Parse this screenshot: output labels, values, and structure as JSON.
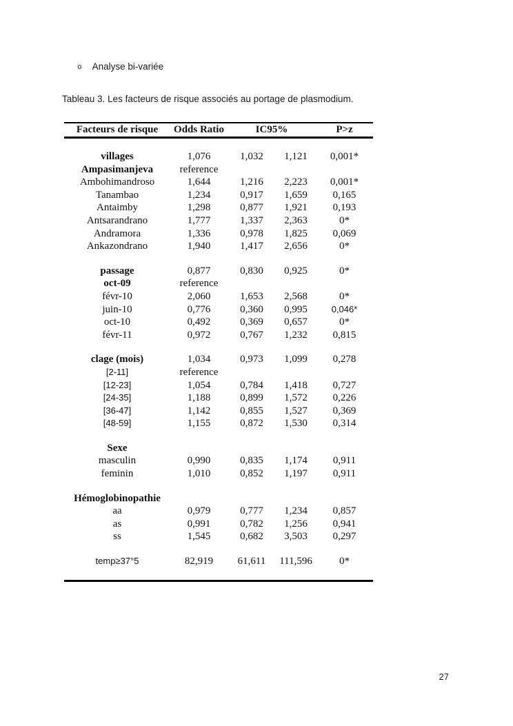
{
  "page": {
    "bullet_item": "Analyse bi-variée",
    "table_caption": "Tableau 3. Les facteurs de risque associés au portage de plasmodium.",
    "page_number": "27"
  },
  "colors": {
    "background": "#ffffff",
    "text": "#1a1a1a",
    "table_rule": "#000000"
  },
  "table": {
    "headers": [
      "Facteurs de risque",
      "Odds Ratio",
      "IC95%",
      "P>z"
    ],
    "rows": [
      {
        "spacer": true,
        "variant": "first"
      },
      {
        "label": "villages",
        "label_style": "bold",
        "or": "1,076",
        "low": "1,032",
        "high": "1,121",
        "p": "0,001*"
      },
      {
        "label": "Ampasimanjeva",
        "label_style": "bold",
        "or": "reference",
        "low": "",
        "high": "",
        "p": ""
      },
      {
        "label": "Ambohimandroso",
        "or": "1,644",
        "low": "1,216",
        "high": "2,223",
        "p": "0,001*"
      },
      {
        "label": "Tanambao",
        "or": "1,234",
        "low": "0,917",
        "high": "1,659",
        "p": "0,165"
      },
      {
        "label": "Antaimby",
        "or": "1,298",
        "low": "0,877",
        "high": "1,921",
        "p": "0,193"
      },
      {
        "label": "Antsarandrano",
        "or": "1,777",
        "low": "1,337",
        "high": "2,363",
        "p": "0*"
      },
      {
        "label": "Andramora",
        "or": "1,336",
        "low": "0,978",
        "high": "1,825",
        "p": "0,069"
      },
      {
        "label": "Ankazondrano",
        "or": "1,940",
        "low": "1,417",
        "high": "2,656",
        "p": "0*"
      },
      {
        "spacer": true
      },
      {
        "label": "passage",
        "label_style": "bold",
        "or": "0,877",
        "low": "0,830",
        "high": "0,925",
        "p": "0*"
      },
      {
        "label": "oct-09",
        "label_style": "bold",
        "or": "reference",
        "low": "",
        "high": "",
        "p": ""
      },
      {
        "label": "févr-10",
        "or": "2,060",
        "low": "1,653",
        "high": "2,568",
        "p": "0*"
      },
      {
        "label": "juin-10",
        "or": "0,776",
        "low": "0,360",
        "high": "0,995",
        "p": "0,046*",
        "p_style": "sans"
      },
      {
        "label": "oct-10",
        "or": "0,492",
        "low": "0,369",
        "high": "0,657",
        "p": "0*"
      },
      {
        "label": "févr-11",
        "or": "0,972",
        "low": "0,767",
        "high": "1,232",
        "p": "0,815"
      },
      {
        "spacer": true
      },
      {
        "label": "clage (mois)",
        "label_style": "bold",
        "or": "1,034",
        "low": "0,973",
        "high": "1,099",
        "p": "0,278"
      },
      {
        "label": "[2-11]",
        "label_style": "sans",
        "or": "reference",
        "low": "",
        "high": "",
        "p": ""
      },
      {
        "label": "[12-23]",
        "label_style": "sans",
        "or": "1,054",
        "low": "0,784",
        "high": "1,418",
        "p": "0,727"
      },
      {
        "label": "[24-35]",
        "label_style": "sans",
        "or": "1,188",
        "low": "0,899",
        "high": "1,572",
        "p": "0,226"
      },
      {
        "label": "[36-47]",
        "label_style": "sans",
        "or": "1,142",
        "low": "0,855",
        "high": "1,527",
        "p": "0,369"
      },
      {
        "label": "[48-59]",
        "label_style": "sans",
        "or": "1,155",
        "low": "0,872",
        "high": "1,530",
        "p": "0,314"
      },
      {
        "spacer": true
      },
      {
        "label": "Sexe",
        "label_style": "bold",
        "or": "",
        "low": "",
        "high": "",
        "p": ""
      },
      {
        "label": "masculin",
        "or": "0,990",
        "low": "0,835",
        "high": "1,174",
        "p": "0,911"
      },
      {
        "label": "feminin",
        "or": "1,010",
        "low": "0,852",
        "high": "1,197",
        "p": "0,911"
      },
      {
        "spacer": true
      },
      {
        "label": "Hémoglobinopathie",
        "label_style": "bold",
        "or": "",
        "low": "",
        "high": "",
        "p": ""
      },
      {
        "label": "aa",
        "or": "0,979",
        "low": "0,777",
        "high": "1,234",
        "p": "0,857"
      },
      {
        "label": "as",
        "or": "0,991",
        "low": "0,782",
        "high": "1,256",
        "p": "0,941"
      },
      {
        "label": "ss",
        "or": "1,545",
        "low": "0,682",
        "high": "3,503",
        "p": "0,297"
      },
      {
        "spacer": true
      },
      {
        "label": "temp≥37°5",
        "label_style": "sans",
        "or": "82,919",
        "low": "61,611",
        "high": "111,596",
        "p": "0*"
      },
      {
        "spacer": true,
        "variant": "last"
      }
    ]
  }
}
